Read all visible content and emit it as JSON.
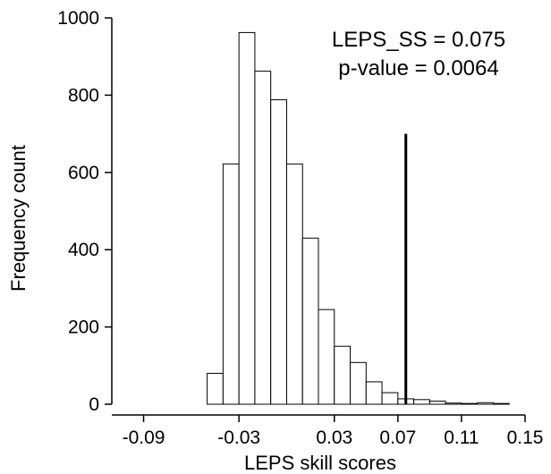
{
  "chart_data": {
    "type": "bar",
    "xlabel": "LEPS skill scores",
    "ylabel": "Frequency count",
    "xlim": [
      -0.11,
      0.15
    ],
    "ylim": [
      0,
      1000
    ],
    "x_ticks": [
      -0.09,
      -0.03,
      0.03,
      0.07,
      0.11,
      0.15
    ],
    "x_tick_labels": [
      "-0.09",
      "-0.03",
      "0.03",
      "0.07",
      "0.11",
      "0.15"
    ],
    "y_ticks": [
      0,
      200,
      400,
      600,
      800,
      1000
    ],
    "y_tick_labels": [
      "0",
      "200",
      "400",
      "600",
      "800",
      "1000"
    ],
    "bin_width": 0.01,
    "bins": [
      {
        "start": -0.05,
        "end": -0.04,
        "count": 80
      },
      {
        "start": -0.04,
        "end": -0.03,
        "count": 622
      },
      {
        "start": -0.03,
        "end": -0.02,
        "count": 962
      },
      {
        "start": -0.02,
        "end": -0.01,
        "count": 862
      },
      {
        "start": -0.01,
        "end": 0.0,
        "count": 788
      },
      {
        "start": 0.0,
        "end": 0.01,
        "count": 622
      },
      {
        "start": 0.01,
        "end": 0.02,
        "count": 430
      },
      {
        "start": 0.02,
        "end": 0.03,
        "count": 245
      },
      {
        "start": 0.03,
        "end": 0.04,
        "count": 150
      },
      {
        "start": 0.04,
        "end": 0.05,
        "count": 108
      },
      {
        "start": 0.05,
        "end": 0.06,
        "count": 58
      },
      {
        "start": 0.06,
        "end": 0.07,
        "count": 30
      },
      {
        "start": 0.07,
        "end": 0.08,
        "count": 14
      },
      {
        "start": 0.08,
        "end": 0.09,
        "count": 12
      },
      {
        "start": 0.09,
        "end": 0.1,
        "count": 8
      },
      {
        "start": 0.1,
        "end": 0.11,
        "count": 3
      },
      {
        "start": 0.11,
        "end": 0.12,
        "count": 2
      },
      {
        "start": 0.12,
        "end": 0.13,
        "count": 4
      },
      {
        "start": 0.13,
        "end": 0.14,
        "count": 2
      }
    ],
    "reference_line": {
      "x": 0.075,
      "y_top": 700
    },
    "annotations": [
      {
        "text": "LEPS_SS = 0.075"
      },
      {
        "text": "p-value = 0.0064"
      }
    ],
    "grid": false,
    "legend": "none"
  }
}
